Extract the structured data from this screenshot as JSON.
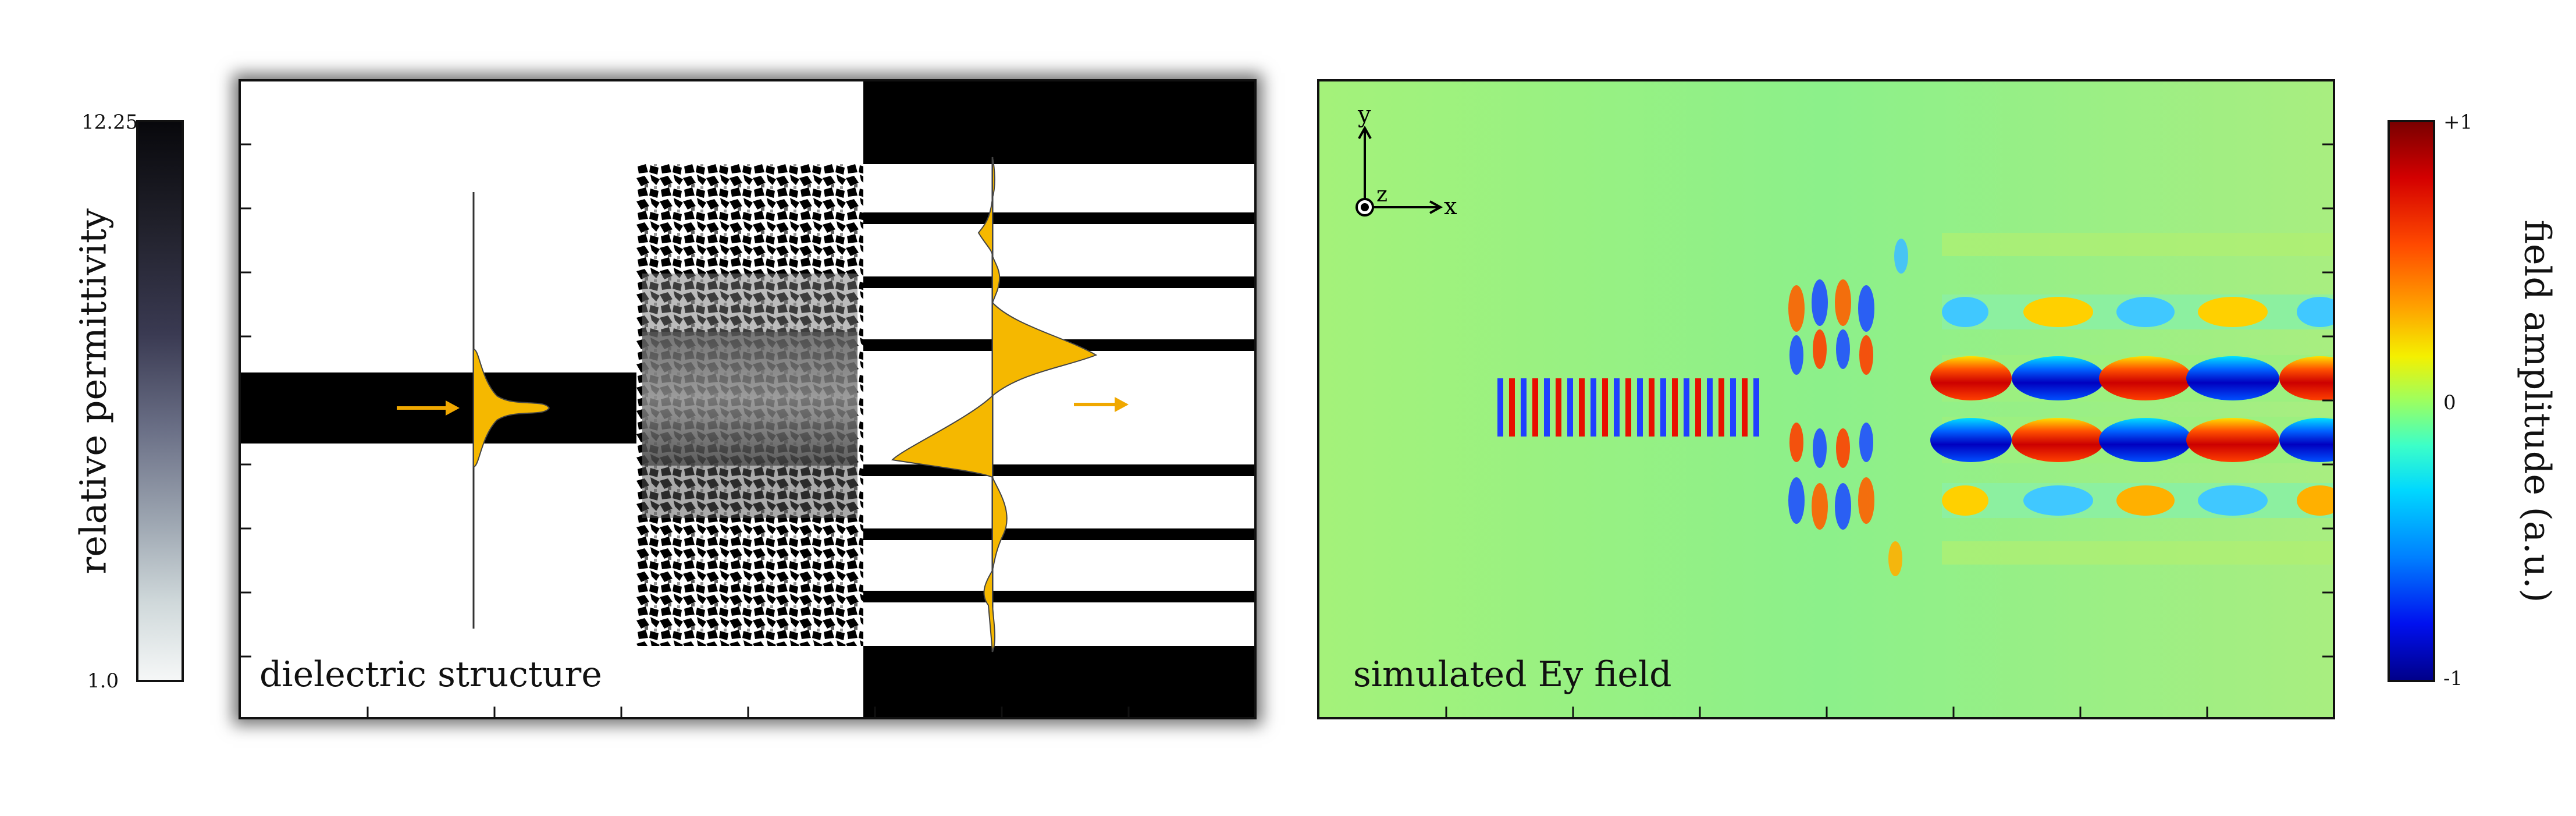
{
  "permittivity_colorbar": {
    "max_label": "12.25",
    "min_label": "1.0",
    "title": "relative permittivity"
  },
  "dielectric_panel": {
    "caption": "dielectric structure"
  },
  "field_panel": {
    "caption": "simulated Ey field",
    "axis_x": "x",
    "axis_y": "y",
    "axis_z": "z"
  },
  "field_colorbar": {
    "max_label": "+1",
    "mid_label": "0",
    "min_label": "-1",
    "title": "field amplitude (a.u.)"
  },
  "colors": {
    "pulse_fill": "#f5b800",
    "arrow": "#f0a800",
    "dielectric_dark": "#000000",
    "field_background": "#9df07c"
  }
}
